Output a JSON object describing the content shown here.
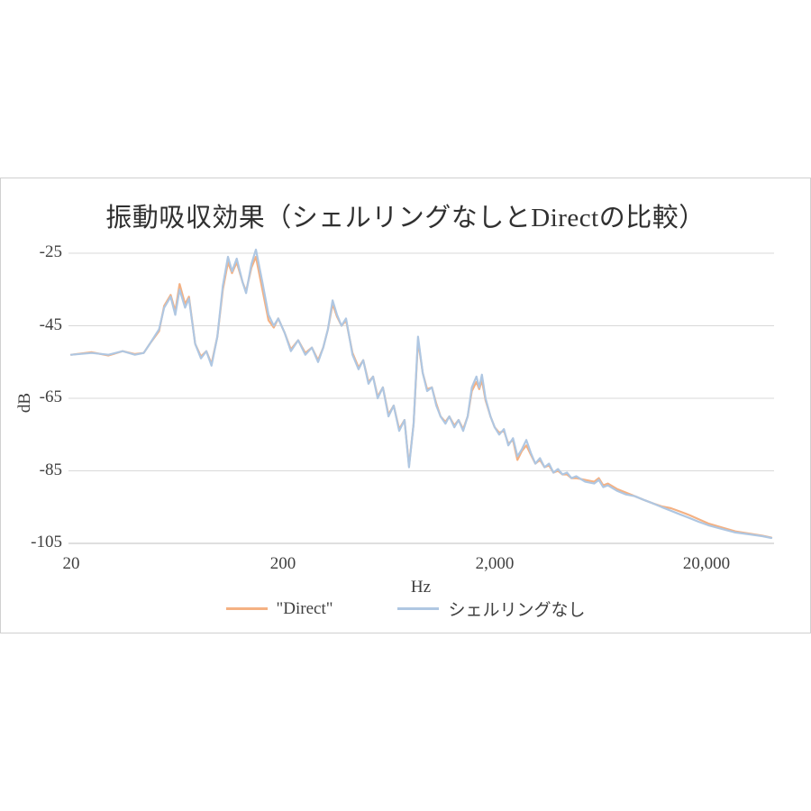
{
  "chart_data": {
    "type": "line",
    "title": "振動吸収効果（シェルリングなしとDirectの比較）",
    "xlabel": "Hz",
    "ylabel": "dB",
    "x_scale": "log",
    "xlim": [
      20,
      40500
    ],
    "ylim": [
      -105,
      -25
    ],
    "grid": "horizontal",
    "legend_position": "bottom",
    "axis_text_color": "#3f3f3f",
    "gridline_color": "#d9d9d9",
    "axis_line_color": "#bfbfbf",
    "x_ticks": [
      {
        "value": 20,
        "label": "20"
      },
      {
        "value": 200,
        "label": "200"
      },
      {
        "value": 2000,
        "label": "2,000"
      },
      {
        "value": 20000,
        "label": "20,000"
      }
    ],
    "y_ticks": [
      {
        "value": -25,
        "label": "-25"
      },
      {
        "value": -45,
        "label": "-45"
      },
      {
        "value": -65,
        "label": "-65"
      },
      {
        "value": -85,
        "label": "-85"
      },
      {
        "value": -105,
        "label": "-105"
      }
    ],
    "x": [
      20,
      25,
      30,
      35,
      40,
      44,
      47,
      52,
      55,
      59,
      62,
      65,
      69,
      72,
      77,
      82,
      87,
      92,
      98,
      104,
      110,
      115,
      121,
      129,
      134,
      142,
      149,
      160,
      171,
      181,
      190,
      204,
      218,
      236,
      255,
      274,
      293,
      310,
      326,
      343,
      360,
      378,
      397,
      426,
      455,
      479,
      507,
      533,
      560,
      593,
      630,
      667,
      708,
      750,
      788,
      828,
      869,
      914,
      959,
      1010,
      1060,
      1110,
      1170,
      1220,
      1290,
      1350,
      1420,
      1490,
      1560,
      1640,
      1690,
      1740,
      1810,
      1910,
      2000,
      2100,
      2210,
      2320,
      2440,
      2560,
      2690,
      2820,
      2960,
      3110,
      3270,
      3440,
      3610,
      3790,
      3980,
      4180,
      4390,
      4610,
      4850,
      5350,
      5900,
      6200,
      6510,
      6840,
      7550,
      8330,
      9190,
      10100,
      11200,
      12300,
      13600,
      15000,
      16600,
      18300,
      20400,
      23600,
      27400,
      31700,
      36700,
      40500
    ],
    "series": [
      {
        "name": "\"Direct\"",
        "color": "#f4b183",
        "values": [
          -53,
          -52.3,
          -53.2,
          -52,
          -52.8,
          -52.5,
          -50,
          -46.5,
          -39.5,
          -36.5,
          -41,
          -33.5,
          -39,
          -37,
          -50,
          -53.5,
          -52,
          -55.5,
          -48,
          -35,
          -27.5,
          -30.5,
          -27.5,
          -33,
          -35.5,
          -29,
          -26,
          -35,
          -43.5,
          -45.5,
          -43,
          -47,
          -51.5,
          -49,
          -52.5,
          -51,
          -54.5,
          -51,
          -46,
          -39,
          -42.5,
          -45,
          -43.5,
          -52.5,
          -56.5,
          -54.5,
          -60.5,
          -59,
          -64.5,
          -62,
          -69.5,
          -67,
          -73.5,
          -71,
          -83.5,
          -72,
          -49,
          -58,
          -62.5,
          -62,
          -66.5,
          -70,
          -71.5,
          -70,
          -72.5,
          -71,
          -73.5,
          -70,
          -63,
          -60.5,
          -62.5,
          -60,
          -65.5,
          -70,
          -73,
          -74.5,
          -74,
          -77.5,
          -76.5,
          -82,
          -79.5,
          -78,
          -80.5,
          -83,
          -82,
          -84,
          -83.5,
          -85.5,
          -85,
          -86,
          -86,
          -87,
          -87,
          -87.5,
          -88,
          -87,
          -89,
          -88.5,
          -90,
          -91,
          -92,
          -93,
          -94,
          -94.8,
          -95.3,
          -96.2,
          -97.2,
          -98.3,
          -99.5,
          -100.6,
          -101.7,
          -102.3,
          -102.9,
          -103.4
        ]
      },
      {
        "name": "シェルリングなし",
        "color": "#afc7e2",
        "values": [
          -53,
          -52.5,
          -53,
          -52,
          -53,
          -52.5,
          -50,
          -46,
          -40,
          -37,
          -42,
          -35,
          -40,
          -37.5,
          -50,
          -54,
          -52,
          -56,
          -48,
          -34,
          -26,
          -30,
          -26.5,
          -33,
          -36,
          -28,
          -24,
          -33,
          -42,
          -45,
          -43,
          -47,
          -52,
          -49,
          -53,
          -51,
          -55,
          -51,
          -46,
          -38,
          -42,
          -45,
          -43,
          -53,
          -57,
          -54.5,
          -61,
          -59,
          -65,
          -62,
          -70,
          -67,
          -74,
          -71,
          -84,
          -72,
          -48,
          -58,
          -63,
          -62,
          -67,
          -70,
          -72,
          -70,
          -73,
          -71,
          -74,
          -70,
          -62,
          -59,
          -62,
          -58.5,
          -65,
          -70,
          -73,
          -75,
          -73.5,
          -78,
          -76,
          -81,
          -79,
          -76.5,
          -80,
          -83,
          -81.5,
          -84,
          -83,
          -85.5,
          -84.5,
          -86,
          -85.5,
          -87,
          -86.5,
          -88,
          -88.5,
          -87.5,
          -89.5,
          -89,
          -90.5,
          -91.5,
          -92,
          -93,
          -94,
          -95,
          -96,
          -97,
          -98,
          -99,
          -100,
          -101,
          -102,
          -102.5,
          -103,
          -103.5
        ]
      }
    ]
  }
}
